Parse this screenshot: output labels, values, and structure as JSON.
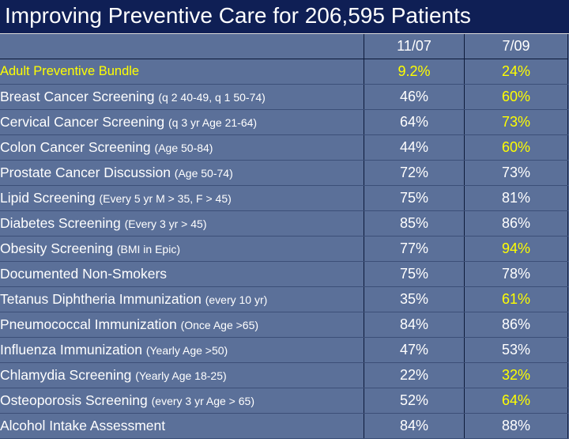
{
  "title": "Improving Preventive Care for 206,595 Patients",
  "columns": [
    "",
    "11/07",
    "7/09"
  ],
  "rows": [
    {
      "label": "Adult Preventive Bundle",
      "note": "",
      "v1": "9.2%",
      "v2": "24%",
      "hl1": true,
      "hl2": true
    },
    {
      "label": "Breast Cancer Screening ",
      "note": "(q 2  40-49, q 1 50-74)",
      "v1": "46%",
      "v2": "60%",
      "hl1": false,
      "hl2": true
    },
    {
      "label": "Cervical Cancer Screening ",
      "note": "(q 3 yr Age 21-64)",
      "v1": "64%",
      "v2": "73%",
      "hl1": false,
      "hl2": true
    },
    {
      "label": "Colon Cancer Screening ",
      "note": "(Age 50-84)",
      "v1": "44%",
      "v2": "60%",
      "hl1": false,
      "hl2": true
    },
    {
      "label": "Prostate Cancer Discussion ",
      "note": "(Age 50-74)",
      "v1": "72%",
      "v2": "73%",
      "hl1": false,
      "hl2": false
    },
    {
      "label": "Lipid Screening ",
      "note": "(Every 5 yr  M > 35, F > 45)",
      "v1": "75%",
      "v2": "81%",
      "hl1": false,
      "hl2": false
    },
    {
      "label": "Diabetes Screening ",
      "note": "(Every 3 yr > 45)",
      "v1": "85%",
      "v2": "86%",
      "hl1": false,
      "hl2": false
    },
    {
      "label": "Obesity Screening ",
      "note": "(BMI in Epic)",
      "v1": "77%",
      "v2": "94%",
      "hl1": false,
      "hl2": true
    },
    {
      "label": "Documented Non-Smokers",
      "note": "",
      "v1": "75%",
      "v2": "78%",
      "hl1": false,
      "hl2": false
    },
    {
      "label": "Tetanus Diphtheria Immunization ",
      "note": "(every 10 yr)",
      "v1": "35%",
      "v2": "61%",
      "hl1": false,
      "hl2": true
    },
    {
      "label": "Pneumococcal Immunization ",
      "note": "(Once Age >65)",
      "v1": "84%",
      "v2": "86%",
      "hl1": false,
      "hl2": false
    },
    {
      "label": "Influenza Immunization ",
      "note": "(Yearly Age >50)",
      "v1": "47%",
      "v2": "53%",
      "hl1": false,
      "hl2": false
    },
    {
      "label": "Chlamydia Screening ",
      "note": "(Yearly Age 18-25)",
      "v1": "22%",
      "v2": "32%",
      "hl1": false,
      "hl2": true
    },
    {
      "label": "Osteoporosis Screening  ",
      "note": "(every 3 yr Age > 65)",
      "v1": "52%",
      "v2": "64%",
      "hl1": false,
      "hl2": true
    },
    {
      "label": "Alcohol Intake Assessment",
      "note": "",
      "v1": "84%",
      "v2": "88%",
      "hl1": false,
      "hl2": false
    }
  ],
  "colors": {
    "background": "#5b7099",
    "title_bar": "#0f1f55",
    "highlight": "#ffff00",
    "text": "#ffffff"
  }
}
